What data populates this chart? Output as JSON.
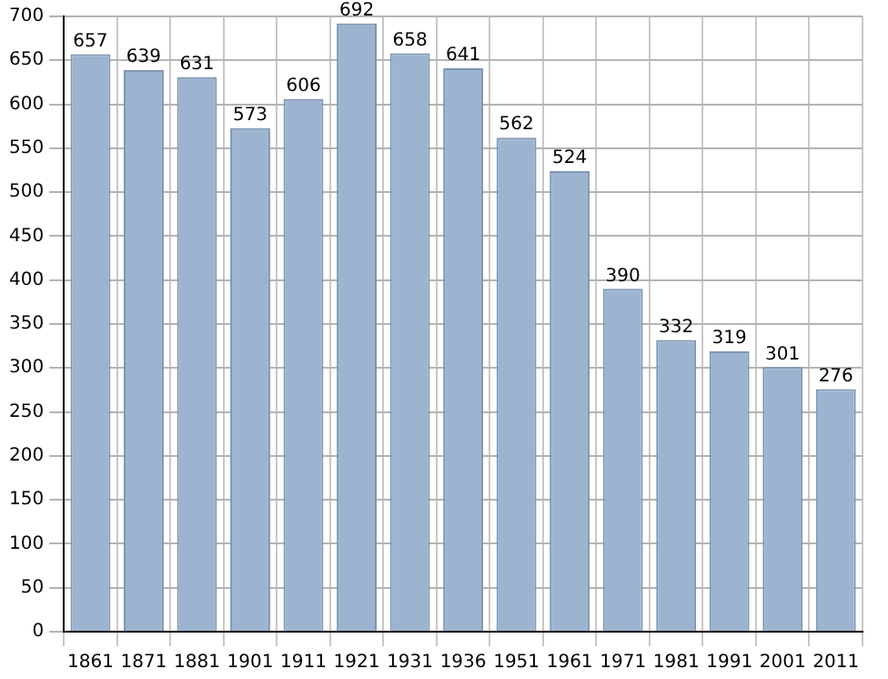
{
  "chart_data": {
    "type": "bar",
    "categories": [
      "1861",
      "1871",
      "1881",
      "1901",
      "1911",
      "1921",
      "1931",
      "1936",
      "1951",
      "1961",
      "1971",
      "1981",
      "1991",
      "2001",
      "2011"
    ],
    "values": [
      657,
      639,
      631,
      573,
      606,
      692,
      658,
      641,
      562,
      524,
      390,
      332,
      319,
      301,
      276
    ],
    "color": "#9db4d0",
    "ylim": [
      0,
      700
    ],
    "yticks": [
      0,
      50,
      100,
      150,
      200,
      250,
      300,
      350,
      400,
      450,
      500,
      550,
      600,
      650,
      700
    ],
    "grid": true,
    "data_labels": true
  }
}
